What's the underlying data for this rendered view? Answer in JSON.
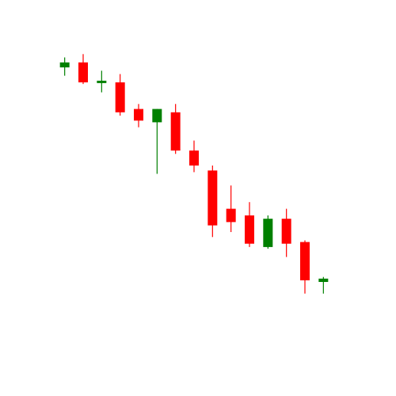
{
  "chart_data": {
    "type": "candlestick",
    "title": "",
    "xlabel": "",
    "ylabel": "",
    "axes_visible": false,
    "grid": false,
    "legend": "none",
    "colors": {
      "up": "#008000",
      "down": "#ff0000",
      "background": "#ffffff"
    },
    "ylim": [
      0,
      100
    ],
    "candles": [
      {
        "open": 84.5,
        "high": 87.5,
        "low": 82.0,
        "close": 86.0
      },
      {
        "open": 86.0,
        "high": 88.5,
        "low": 79.5,
        "close": 80.0
      },
      {
        "open": 80.0,
        "high": 83.5,
        "low": 77.0,
        "close": 80.5
      },
      {
        "open": 80.0,
        "high": 82.5,
        "low": 70.0,
        "close": 71.0
      },
      {
        "open": 72.0,
        "high": 73.5,
        "low": 66.5,
        "close": 68.5
      },
      {
        "open": 68.0,
        "high": 72.0,
        "low": 52.5,
        "close": 72.0
      },
      {
        "open": 71.0,
        "high": 73.5,
        "low": 58.5,
        "close": 59.5
      },
      {
        "open": 59.5,
        "high": 62.5,
        "low": 53.0,
        "close": 55.0
      },
      {
        "open": 53.5,
        "high": 55.0,
        "low": 33.5,
        "close": 37.0
      },
      {
        "open": 42.0,
        "high": 49.0,
        "low": 35.0,
        "close": 38.0
      },
      {
        "open": 40.0,
        "high": 44.0,
        "low": 30.5,
        "close": 31.5
      },
      {
        "open": 30.5,
        "high": 40.0,
        "low": 30.0,
        "close": 39.0
      },
      {
        "open": 39.0,
        "high": 42.0,
        "low": 27.5,
        "close": 31.5
      },
      {
        "open": 32.0,
        "high": 32.5,
        "low": 16.5,
        "close": 20.5
      },
      {
        "open": 20.0,
        "high": 21.5,
        "low": 16.5,
        "close": 21.0
      }
    ]
  }
}
